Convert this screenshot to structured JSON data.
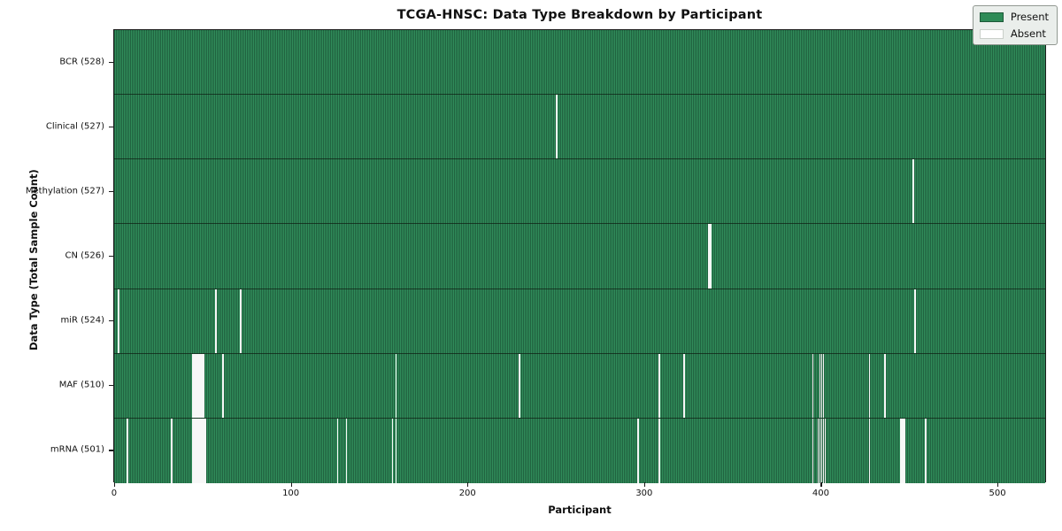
{
  "title": "TCGA-HNSC: Data Type Breakdown by Participant",
  "chart_data": {
    "type": "heatmap",
    "title": "TCGA-HNSC: Data Type Breakdown by Participant",
    "xlabel": "Participant",
    "ylabel": "Data Type (Total Sample Count)",
    "x_ticks": [
      0,
      100,
      200,
      300,
      400,
      500
    ],
    "x_range": [
      0,
      528
    ],
    "n_participants": 528,
    "grid": false,
    "legend": {
      "position": "upper right",
      "present_label": "Present",
      "absent_label": "Absent"
    },
    "colors": {
      "present": "#2e8b57",
      "present_edge": "#20613f",
      "absent": "#ffffff",
      "plot_border": "#1a1a1a",
      "legend_bg": "#eaeeeb"
    },
    "rows": [
      {
        "label": "BCR (528)",
        "data_type": "BCR",
        "count": 528,
        "missing_participants": []
      },
      {
        "label": "Clinical (527)",
        "data_type": "Clinical",
        "count": 527,
        "missing_participants": [
          250
        ]
      },
      {
        "label": "Methylation (527)",
        "data_type": "Methylation",
        "count": 527,
        "missing_participants": [
          452
        ]
      },
      {
        "label": "CN (526)",
        "data_type": "CN",
        "count": 526,
        "missing_participants": [
          336,
          337
        ]
      },
      {
        "label": "miR (524)",
        "data_type": "miR",
        "count": 524,
        "missing_participants": [
          2,
          57,
          71,
          453
        ]
      },
      {
        "label": "MAF (510)",
        "data_type": "MAF",
        "count": 510,
        "missing_participants": [
          44,
          45,
          46,
          47,
          48,
          49,
          50,
          61,
          159,
          229,
          308,
          322,
          395,
          399,
          400,
          401,
          427,
          436
        ]
      },
      {
        "label": "mRNA (501)",
        "data_type": "mRNA",
        "count": 501,
        "missing_participants": [
          7,
          32,
          44,
          45,
          46,
          47,
          48,
          49,
          50,
          51,
          126,
          131,
          157,
          159,
          296,
          308,
          395,
          398,
          399,
          400,
          401,
          402,
          427,
          445,
          446,
          447,
          459
        ]
      }
    ]
  }
}
